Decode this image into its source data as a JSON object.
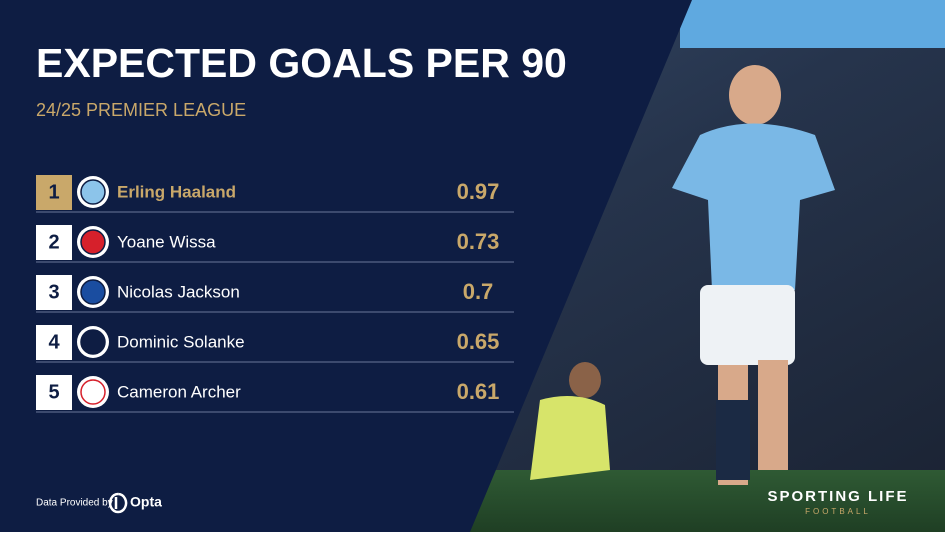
{
  "header": {
    "title": "EXPECTED GOALS PER 90",
    "subtitle": "24/25 PREMIER LEAGUE"
  },
  "table": {
    "rows": [
      {
        "rank": 1,
        "name": "Erling Haaland",
        "value": 0.97
      },
      {
        "rank": 2,
        "name": "Yoane Wissa",
        "value": 0.73
      },
      {
        "rank": 3,
        "name": "Nicolas Jackson",
        "value": 0.7
      },
      {
        "rank": 4,
        "name": "Dominic Solanke",
        "value": 0.65
      },
      {
        "rank": 5,
        "name": "Cameron Archer",
        "value": 0.61
      }
    ]
  },
  "footer": {
    "provider_label": "Data Provided by",
    "provider": "Opta",
    "brand": "SPORTING LIFE",
    "brand_sub": "FOOTBALL"
  }
}
